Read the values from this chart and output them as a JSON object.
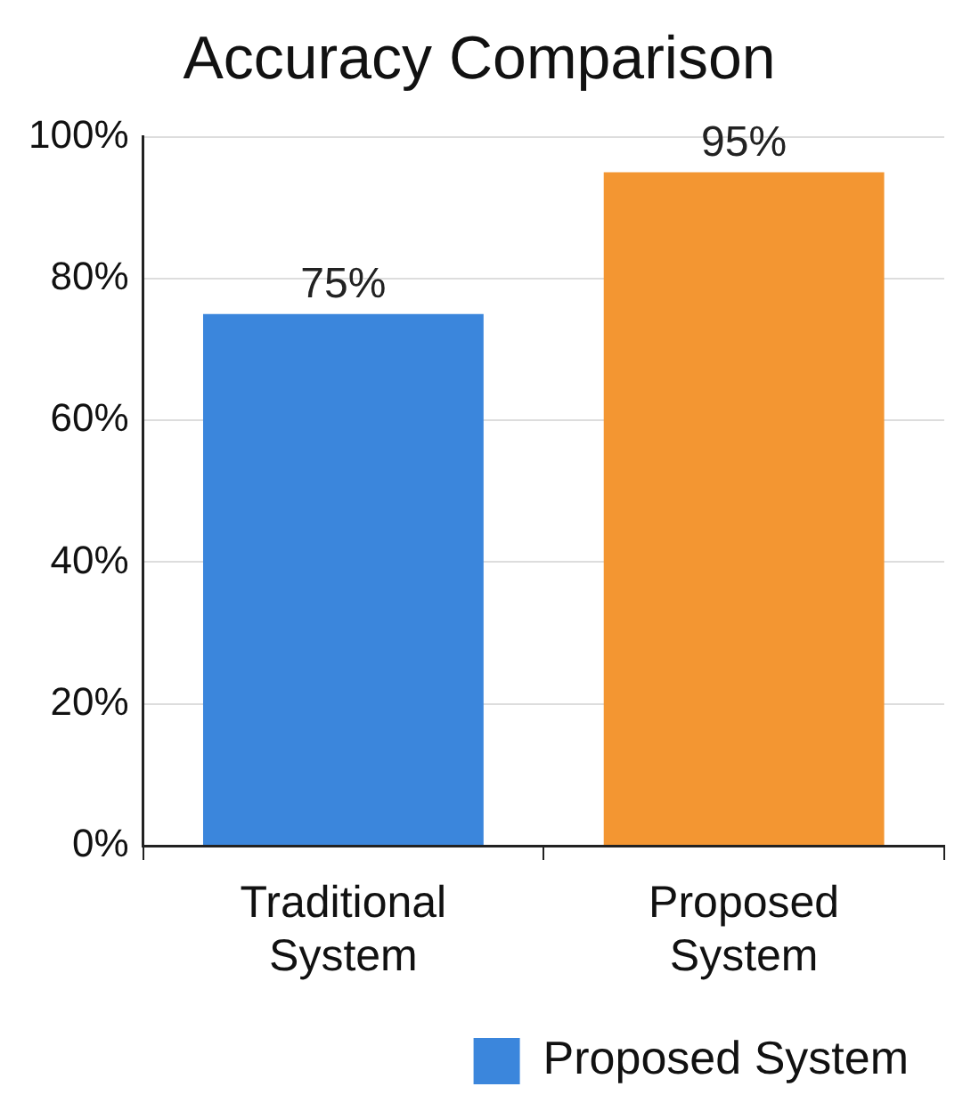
{
  "chart_data": {
    "type": "bar",
    "title": "Accuracy Comparison",
    "categories": [
      "Traditional System",
      "Proposed System"
    ],
    "series": [
      {
        "name": "Proposed System",
        "color": "#3b86dc",
        "colors": [
          "#3b86dc",
          "#f39632"
        ],
        "values": [
          75,
          95
        ],
        "value_labels": [
          "75%",
          "95%"
        ]
      }
    ],
    "ylim": [
      0,
      100
    ],
    "yticks": [
      {
        "value": 0,
        "label": "0%"
      },
      {
        "value": 20,
        "label": "20%"
      },
      {
        "value": 40,
        "label": "40%"
      },
      {
        "value": 60,
        "label": "60%"
      },
      {
        "value": 80,
        "label": "80%"
      },
      {
        "value": 100,
        "label": "100%"
      }
    ],
    "grid": "y",
    "legend": "bottom right"
  }
}
